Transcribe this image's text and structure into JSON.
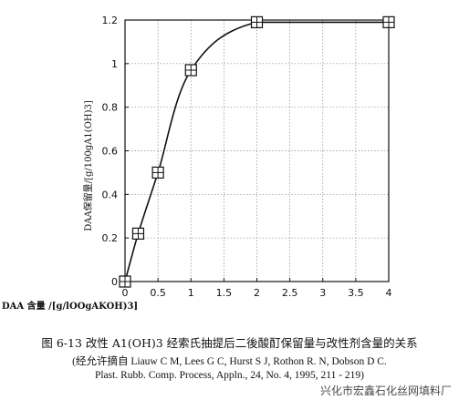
{
  "chart_data": {
    "type": "line",
    "x": [
      0,
      0.2,
      0.5,
      1,
      2,
      4
    ],
    "series": [
      {
        "values": [
          0,
          0.22,
          0.5,
          0.97,
          1.19,
          1.19
        ]
      }
    ],
    "xticks": [
      "0",
      "0.5",
      "1",
      "1.5",
      "2",
      "2.5",
      "3",
      "3.5",
      "4"
    ],
    "yticks": [
      "0",
      "0.2",
      "0.4",
      "0.6",
      "0.8",
      "1",
      "1.2"
    ],
    "xlim": [
      0,
      4
    ],
    "ylim": [
      0,
      1.2
    ],
    "xlabel": "DAA 含量 /[g/lOOgAKOH)3]",
    "ylabel": "DAA保留量/[g/100gA1(OH)3]",
    "grid": true,
    "marker": "square-cross",
    "line_color": "#111111",
    "grid_color": "#8a8a8a"
  },
  "caption": {
    "title": "图 6-13 改性 A1(OH)3 经索氏抽提后二後酸酊保留量与改性剂含量的关系",
    "source_line1": "(经允许摘自 Liauw C M, Lees G C, Hurst S J, Rothon R. N, Dobson D C.",
    "source_line2": "Plast. Rubb. Comp. Process, Appln., 24, No. 4, 1995, 211 - 219)"
  },
  "watermark": "兴化市宏鑫石化丝网填料厂"
}
